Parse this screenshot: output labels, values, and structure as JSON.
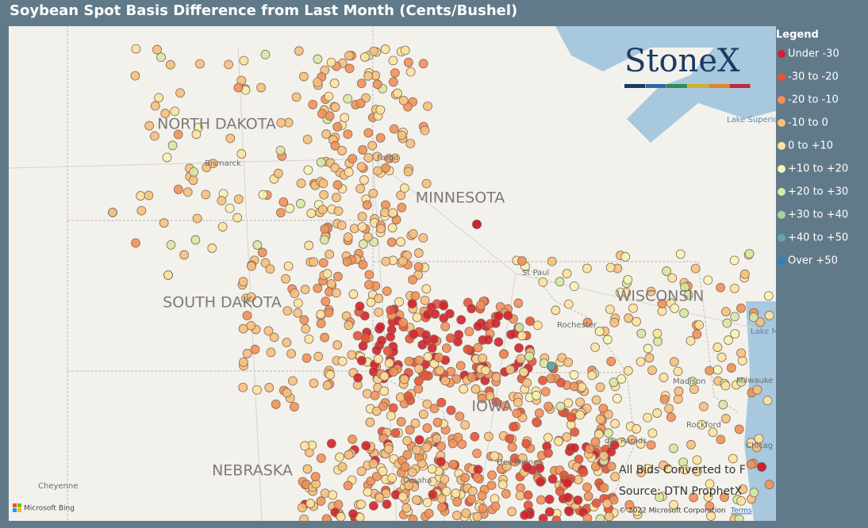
{
  "header": {
    "title": "Soybean Spot Basis Difference from Last Month (Cents/Bushel)"
  },
  "legend": {
    "title": "Legend",
    "items": [
      {
        "label": "Under -30",
        "color": "#d4202c"
      },
      {
        "label": "-30 to -20",
        "color": "#e6533a"
      },
      {
        "label": "-20 to -10",
        "color": "#f0915a"
      },
      {
        "label": "-10 to 0",
        "color": "#f5c07e"
      },
      {
        "label": "0 to +10",
        "color": "#fbe3a0"
      },
      {
        "label": "+10 to +20",
        "color": "#f4f5b8"
      },
      {
        "label": "+20 to +30",
        "color": "#d4e9a6"
      },
      {
        "label": "+30 to +40",
        "color": "#a6d39a"
      },
      {
        "label": "+40 to +50",
        "color": "#66a8a8"
      },
      {
        "label": "Over +50",
        "color": "#2f7fbf"
      }
    ]
  },
  "map": {
    "states": [
      "NORTH DAKOTA",
      "SOUTH DAKOTA",
      "MINNESOTA",
      "WISCONSIN",
      "NEBRASKA",
      "IOWA"
    ],
    "places": [
      "Bismarck",
      "Fargo",
      "St Paul",
      "Rochester",
      "Madison",
      "Milwauke",
      "Rockford",
      "dar Rapids",
      "Chicag",
      "Omaha",
      "Des Moines",
      "Cheyenne",
      "Lake Superior",
      "Lake Michig"
    ]
  },
  "logo": "StoneX",
  "notes": [
    "All Bids Converted to F",
    "Source: DTN ProphetX"
  ],
  "attribution": {
    "bing": "Microsoft Bing",
    "copyright": "© 2022 Microsoft Corporation",
    "terms": "Terms"
  }
}
